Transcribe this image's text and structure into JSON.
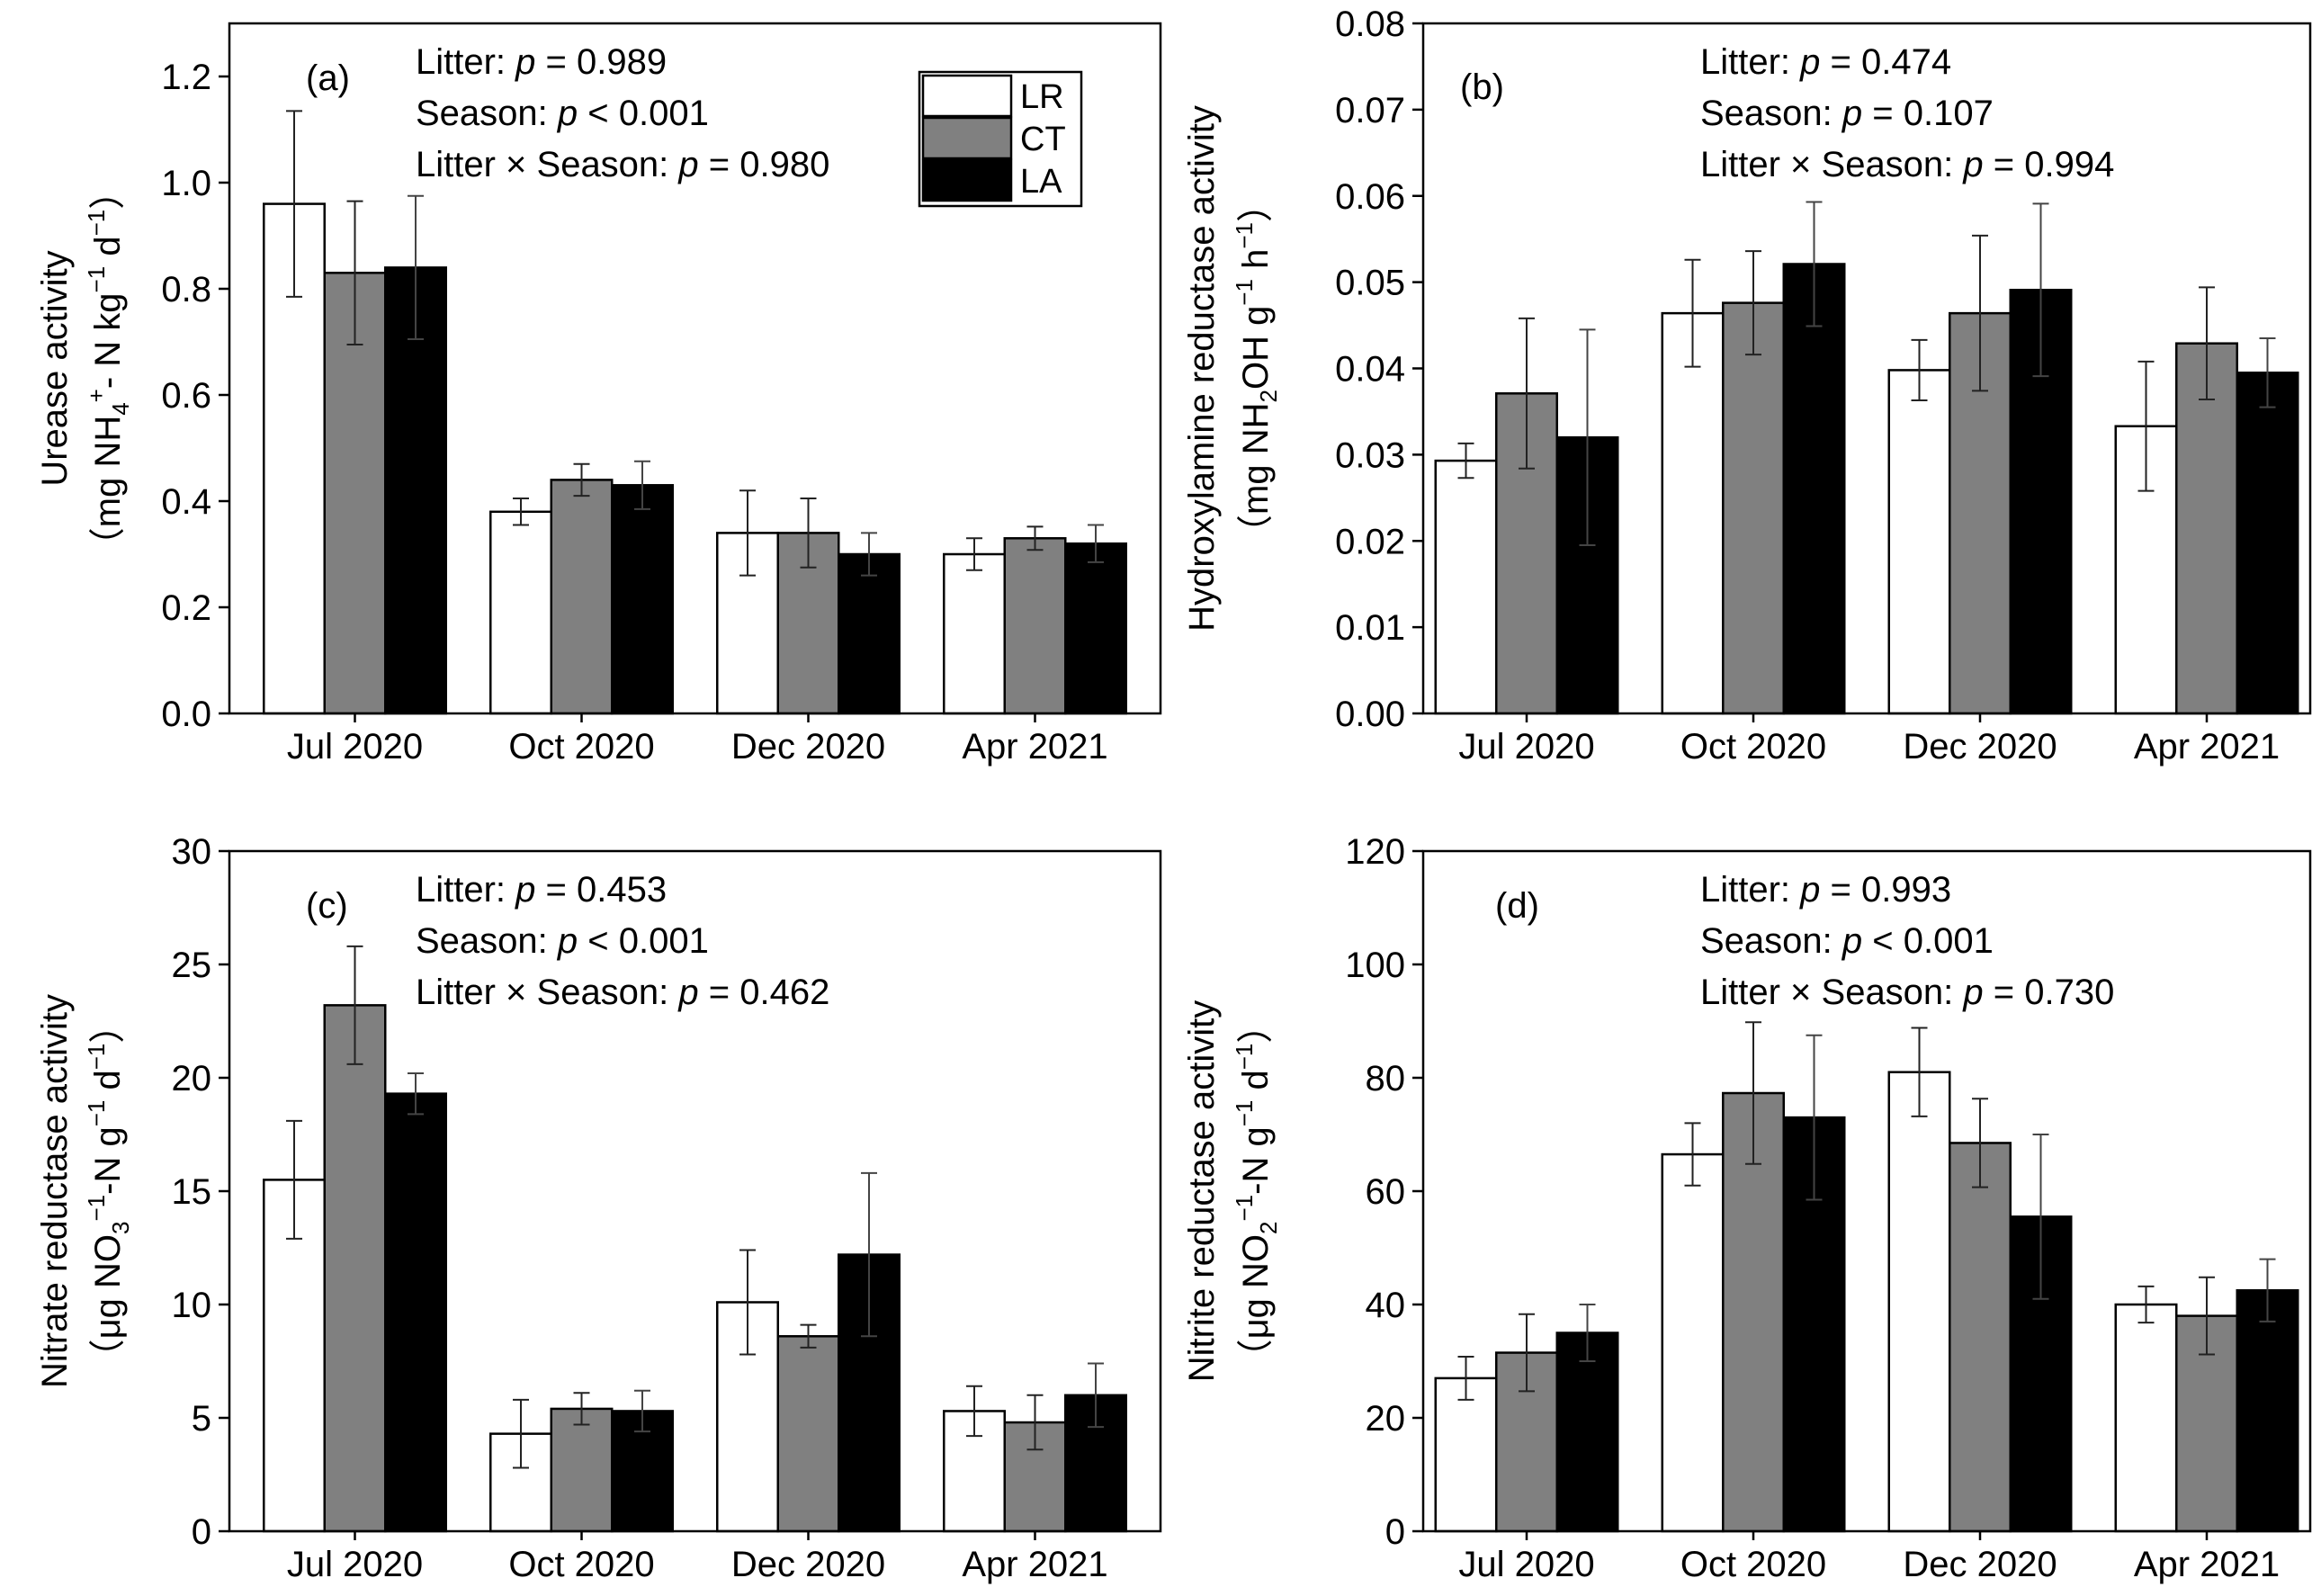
{
  "figure": {
    "legend": [
      {
        "name": "LR",
        "color": "#ffffff"
      },
      {
        "name": "CT",
        "color": "#808080"
      },
      {
        "name": "LA",
        "color": "#000000"
      }
    ],
    "series_colors": [
      "#ffffff",
      "#808080",
      "#000000"
    ]
  },
  "chart_data": [
    {
      "type": "bar",
      "panel": "(a)",
      "categories": [
        "Jul 2020",
        "Oct 2020",
        "Dec 2020",
        "Apr 2021"
      ],
      "series": [
        {
          "name": "LR",
          "values": [
            0.96,
            0.38,
            0.34,
            0.3
          ],
          "errors": [
            0.175,
            0.025,
            0.08,
            0.03
          ]
        },
        {
          "name": "CT",
          "values": [
            0.83,
            0.44,
            0.34,
            0.33
          ],
          "errors": [
            0.135,
            0.03,
            0.065,
            0.022
          ]
        },
        {
          "name": "LA",
          "values": [
            0.84,
            0.43,
            0.3,
            0.32
          ],
          "errors": [
            0.135,
            0.045,
            0.04,
            0.035
          ]
        }
      ],
      "ylim": [
        0,
        1.3
      ],
      "yticks": [
        "0.0",
        "0.2",
        "0.4",
        "0.6",
        "0.8",
        "1.0",
        "1.2"
      ],
      "ylabel": {
        "line1": [
          {
            "t": "Urease activity"
          }
        ],
        "line2": [
          {
            "t": "（mg NH"
          },
          {
            "t": "4",
            "s": "sub"
          },
          {
            "t": "+",
            "s": "sup"
          },
          {
            "t": "- N kg"
          },
          {
            "t": "−1",
            "s": "sup"
          },
          {
            "t": " d"
          },
          {
            "t": "−1",
            "s": "sup"
          },
          {
            "t": "）"
          }
        ]
      },
      "annotations": [
        [
          {
            "t": "Litter: "
          },
          {
            "t": "p",
            "i": true
          },
          {
            "t": " = 0.989"
          }
        ],
        [
          {
            "t": "Season: "
          },
          {
            "t": "p",
            "i": true
          },
          {
            "t": " < 0.001"
          }
        ],
        [
          {
            "t": "Litter × Season: "
          },
          {
            "t": "p",
            "i": true
          },
          {
            "t": " = 0.980"
          }
        ]
      ],
      "show_legend": true
    },
    {
      "type": "bar",
      "panel": "(b)",
      "categories": [
        "Jul 2020",
        "Oct 2020",
        "Dec 2020",
        "Apr 2021"
      ],
      "series": [
        {
          "name": "LR",
          "values": [
            0.0293,
            0.0464,
            0.0398,
            0.0333
          ],
          "errors": [
            0.002,
            0.0062,
            0.0035,
            0.0075
          ]
        },
        {
          "name": "CT",
          "values": [
            0.0371,
            0.0476,
            0.0464,
            0.0429
          ],
          "errors": [
            0.0087,
            0.006,
            0.009,
            0.0065
          ]
        },
        {
          "name": "LA",
          "values": [
            0.032,
            0.0521,
            0.0491,
            0.0395
          ],
          "errors": [
            0.0125,
            0.0072,
            0.01,
            0.004
          ]
        }
      ],
      "ylim": [
        0,
        0.08
      ],
      "yticks": [
        "0.00",
        "0.01",
        "0.02",
        "0.03",
        "0.04",
        "0.05",
        "0.06",
        "0.07",
        "0.08"
      ],
      "ylabel": {
        "line1": [
          {
            "t": "Hydroxylamine reductase activity"
          }
        ],
        "line2": [
          {
            "t": "（mg NH"
          },
          {
            "t": "2",
            "s": "sub"
          },
          {
            "t": "OH g"
          },
          {
            "t": "−1",
            "s": "sup"
          },
          {
            "t": " h"
          },
          {
            "t": "−1",
            "s": "sup"
          },
          {
            "t": "）"
          }
        ]
      },
      "annotations": [
        [
          {
            "t": "Litter: "
          },
          {
            "t": "p",
            "i": true
          },
          {
            "t": " = 0.474"
          }
        ],
        [
          {
            "t": "Season: "
          },
          {
            "t": "p",
            "i": true
          },
          {
            "t": " = 0.107"
          }
        ],
        [
          {
            "t": "Litter × Season: "
          },
          {
            "t": "p",
            "i": true
          },
          {
            "t": " = 0.994"
          }
        ]
      ],
      "show_legend": false
    },
    {
      "type": "bar",
      "panel": "(c)",
      "categories": [
        "Jul 2020",
        "Oct 2020",
        "Dec 2020",
        "Apr 2021"
      ],
      "series": [
        {
          "name": "LR",
          "values": [
            15.5,
            4.3,
            10.1,
            5.3
          ],
          "errors": [
            2.6,
            1.5,
            2.3,
            1.1
          ]
        },
        {
          "name": "CT",
          "values": [
            23.2,
            5.4,
            8.6,
            4.8
          ],
          "errors": [
            2.6,
            0.7,
            0.5,
            1.2
          ]
        },
        {
          "name": "LA",
          "values": [
            19.3,
            5.3,
            12.2,
            6.0
          ],
          "errors": [
            0.9,
            0.9,
            3.6,
            1.4
          ]
        }
      ],
      "ylim": [
        0,
        30
      ],
      "yticks": [
        "0",
        "5",
        "10",
        "15",
        "20",
        "25",
        "30"
      ],
      "ylabel": {
        "line1": [
          {
            "t": "Nitrate reductase activity"
          }
        ],
        "line2": [
          {
            "t": "（μg NO"
          },
          {
            "t": "3",
            "s": "sub"
          },
          {
            "t": "−1",
            "s": "sup"
          },
          {
            "t": "-N g"
          },
          {
            "t": "−1",
            "s": "sup"
          },
          {
            "t": " d"
          },
          {
            "t": "−1",
            "s": "sup"
          },
          {
            "t": "）"
          }
        ]
      },
      "annotations": [
        [
          {
            "t": "Litter: "
          },
          {
            "t": "p",
            "i": true
          },
          {
            "t": " = 0.453"
          }
        ],
        [
          {
            "t": "Season: "
          },
          {
            "t": "p",
            "i": true
          },
          {
            "t": " < 0.001"
          }
        ],
        [
          {
            "t": "Litter × Season: "
          },
          {
            "t": "p",
            "i": true
          },
          {
            "t": " = 0.462"
          }
        ]
      ],
      "show_legend": false
    },
    {
      "type": "bar",
      "panel": "(d)",
      "categories": [
        "Jul 2020",
        "Oct 2020",
        "Dec 2020",
        "Apr 2021"
      ],
      "series": [
        {
          "name": "LR",
          "values": [
            27.0,
            66.5,
            81.0,
            40.0
          ],
          "errors": [
            3.8,
            5.5,
            7.8,
            3.2
          ]
        },
        {
          "name": "CT",
          "values": [
            31.5,
            77.3,
            68.5,
            38.0
          ],
          "errors": [
            6.8,
            12.5,
            7.8,
            6.8
          ]
        },
        {
          "name": "LA",
          "values": [
            35.0,
            73.0,
            55.5,
            42.5
          ],
          "errors": [
            5.0,
            14.5,
            14.5,
            5.5
          ]
        }
      ],
      "ylim": [
        0,
        120
      ],
      "yticks": [
        "0",
        "20",
        "40",
        "60",
        "80",
        "100",
        "120"
      ],
      "ylabel": {
        "line1": [
          {
            "t": "Nitrite reductase activity"
          }
        ],
        "line2": [
          {
            "t": "（μg NO"
          },
          {
            "t": "2",
            "s": "sub"
          },
          {
            "t": "−1",
            "s": "sup"
          },
          {
            "t": "-N  g"
          },
          {
            "t": "−1",
            "s": "sup"
          },
          {
            "t": " d"
          },
          {
            "t": "−1",
            "s": "sup"
          },
          {
            "t": "）"
          }
        ]
      },
      "annotations": [
        [
          {
            "t": "Litter: "
          },
          {
            "t": "p",
            "i": true
          },
          {
            "t": " = 0.993"
          }
        ],
        [
          {
            "t": "Season: "
          },
          {
            "t": "p",
            "i": true
          },
          {
            "t": " < 0.001"
          }
        ],
        [
          {
            "t": "Litter × Season: "
          },
          {
            "t": "p",
            "i": true
          },
          {
            "t": " = 0.730"
          }
        ]
      ],
      "show_legend": false
    }
  ]
}
